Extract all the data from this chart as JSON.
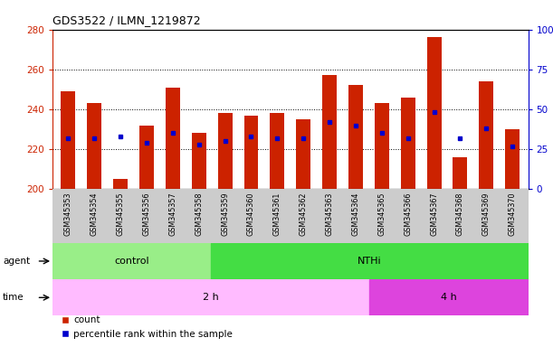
{
  "title": "GDS3522 / ILMN_1219872",
  "samples": [
    "GSM345353",
    "GSM345354",
    "GSM345355",
    "GSM345356",
    "GSM345357",
    "GSM345358",
    "GSM345359",
    "GSM345360",
    "GSM345361",
    "GSM345362",
    "GSM345363",
    "GSM345364",
    "GSM345365",
    "GSM345366",
    "GSM345367",
    "GSM345368",
    "GSM345369",
    "GSM345370"
  ],
  "count_values": [
    249,
    243,
    205,
    232,
    251,
    228,
    238,
    237,
    238,
    235,
    257,
    252,
    243,
    246,
    276,
    216,
    254,
    230
  ],
  "percentile_values": [
    32,
    32,
    33,
    29,
    35,
    28,
    30,
    33,
    32,
    32,
    42,
    40,
    35,
    32,
    48,
    32,
    38,
    27
  ],
  "bar_color": "#cc2200",
  "dot_color": "#0000cc",
  "ymin": 200,
  "ymax": 280,
  "yticks_left": [
    200,
    220,
    240,
    260,
    280
  ],
  "yticks_right": [
    0,
    25,
    50,
    75,
    100
  ],
  "agent_color_control": "#99ee88",
  "agent_color_NTHi": "#44dd44",
  "time_color_2h": "#ffbbff",
  "time_color_4h": "#dd44dd",
  "tick_bg_color": "#cccccc",
  "plot_bg": "#ffffff"
}
